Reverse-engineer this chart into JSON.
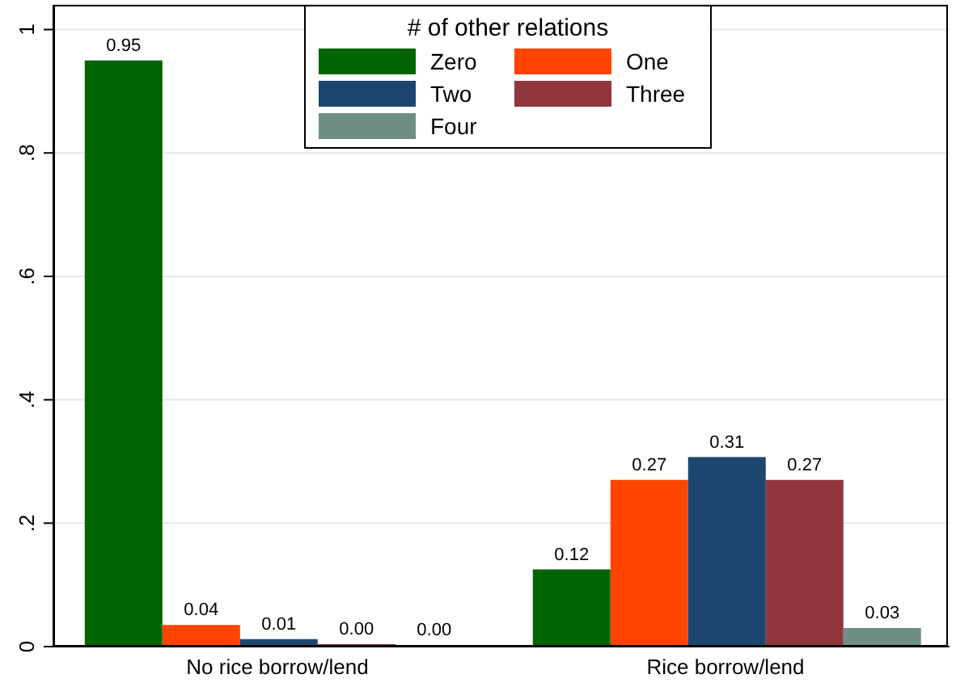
{
  "chart_data": {
    "type": "bar",
    "categories": [
      "No rice borrow/lend",
      "Rice borrow/lend"
    ],
    "series": [
      {
        "name": "Zero",
        "color": "#006400",
        "values": [
          0.95,
          0.125
        ],
        "value_labels": [
          "0.95",
          "0.12"
        ]
      },
      {
        "name": "One",
        "color": "#ff4500",
        "values": [
          0.035,
          0.27
        ],
        "value_labels": [
          "0.04",
          "0.27"
        ]
      },
      {
        "name": "Two",
        "color": "#1c466e",
        "values": [
          0.012,
          0.307
        ],
        "value_labels": [
          "0.01",
          "0.31"
        ]
      },
      {
        "name": "Three",
        "color": "#90353b",
        "values": [
          0.004,
          0.27
        ],
        "value_labels": [
          "0.00",
          "0.27"
        ]
      },
      {
        "name": "Four",
        "color": "#6e8e84",
        "values": [
          0.002,
          0.03
        ],
        "value_labels": [
          "0.00",
          "0.03"
        ]
      }
    ],
    "legend_title": "# of other relations",
    "legend": "top",
    "ylim": [
      0,
      1.04
    ],
    "yticks": [
      {
        "value": 0,
        "label": "0"
      },
      {
        "value": 0.2,
        "label": ".2"
      },
      {
        "value": 0.4,
        "label": ".4"
      },
      {
        "value": 0.6,
        "label": ".6"
      },
      {
        "value": 0.8,
        "label": ".8"
      },
      {
        "value": 1,
        "label": "1"
      }
    ],
    "grid": "y"
  }
}
